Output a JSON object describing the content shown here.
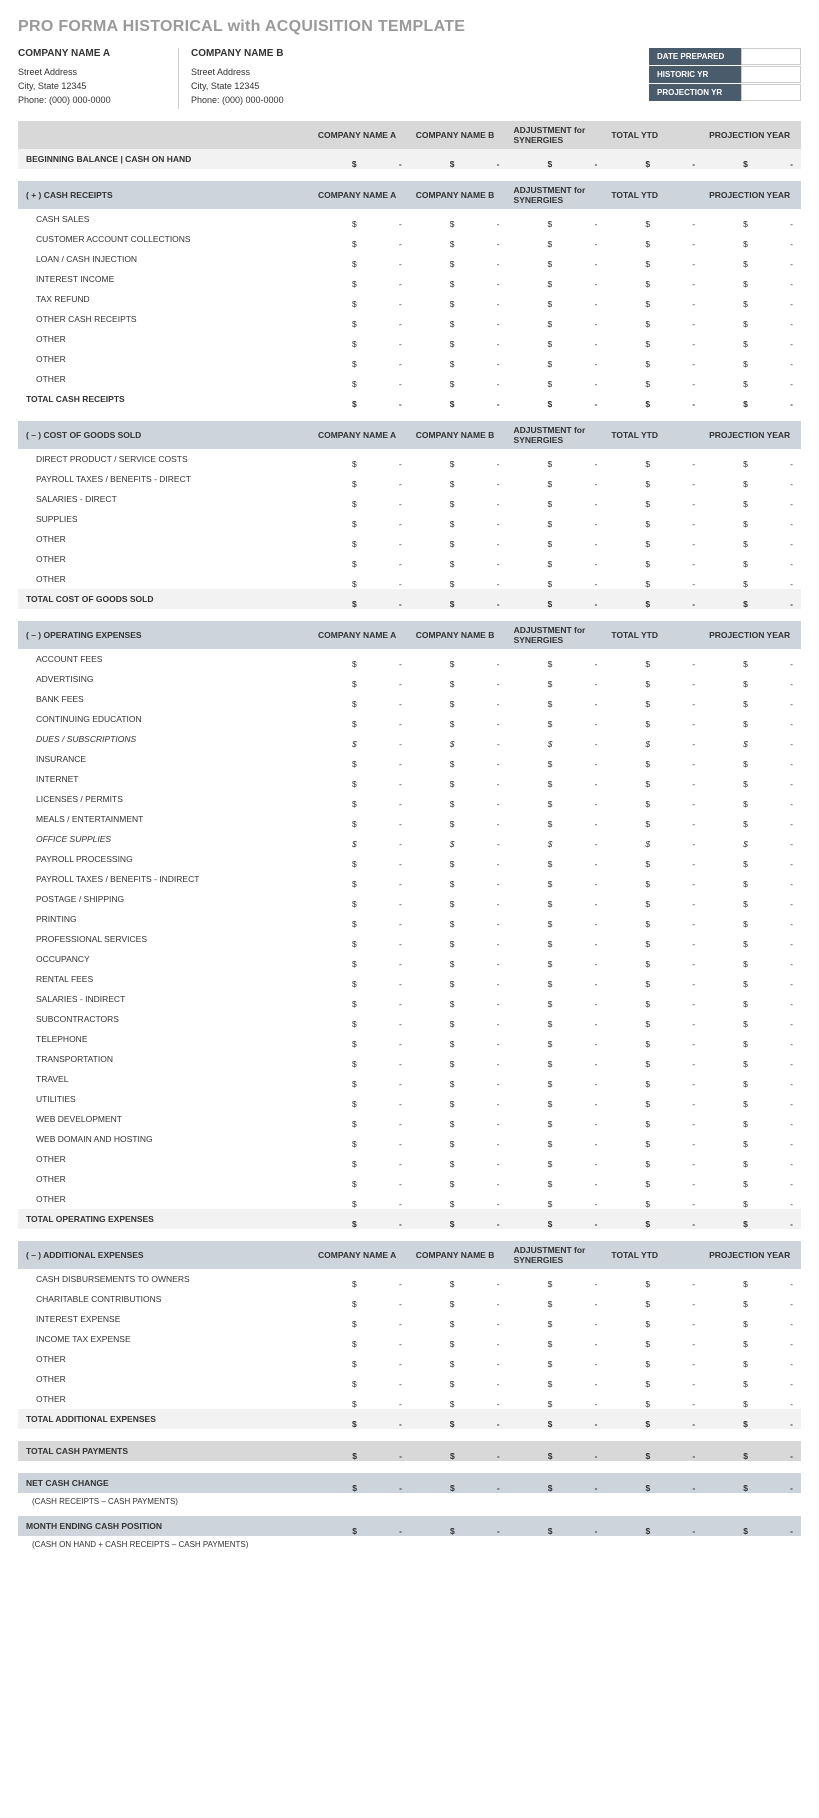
{
  "title": "PRO FORMA HISTORICAL with ACQUISITION TEMPLATE",
  "companyA": {
    "name": "COMPANY NAME A",
    "street": "Street Address",
    "city": "City, State  12345",
    "phone": "Phone: (000) 000-0000"
  },
  "companyB": {
    "name": "COMPANY NAME B",
    "street": "Street Address",
    "city": "City, State  12345",
    "phone": "Phone: (000) 000-0000"
  },
  "meta": {
    "datePrepared": "DATE PREPARED",
    "historicYr": "HISTORIC YR",
    "projectionYr": "PROJECTION YR"
  },
  "columns": [
    "COMPANY NAME A",
    "COMPANY NAME B",
    "ADJUSTMENT for SYNERGIES",
    "TOTAL YTD",
    "PROJECTION YEAR"
  ],
  "currencySymbol": "$",
  "dashSymbol": "-",
  "beginningBalance": {
    "label": "BEGINNING BALANCE  |  CASH ON HAND"
  },
  "sections": [
    {
      "title": "( + )  CASH RECEIPTS",
      "rows": [
        "CASH SALES",
        "CUSTOMER ACCOUNT COLLECTIONS",
        "LOAN / CASH INJECTION",
        "INTEREST INCOME",
        "TAX REFUND",
        "OTHER CASH RECEIPTS",
        "OTHER",
        "OTHER",
        "OTHER"
      ],
      "total": "TOTAL CASH RECEIPTS",
      "totalStyle": "bold"
    },
    {
      "title": "( – )  COST OF GOODS SOLD",
      "rows": [
        "DIRECT PRODUCT / SERVICE COSTS",
        "PAYROLL TAXES / BENEFITS - DIRECT",
        "SALARIES - DIRECT",
        "SUPPLIES",
        "OTHER",
        "OTHER",
        "OTHER"
      ],
      "total": "TOTAL COST OF GOODS SOLD",
      "totalStyle": "light"
    },
    {
      "title": "( – )  OPERATING EXPENSES",
      "rows": [
        "ACCOUNT FEES",
        "ADVERTISING",
        "BANK FEES",
        "CONTINUING EDUCATION",
        "DUES / SUBSCRIPTIONS",
        "INSURANCE",
        "INTERNET",
        "LICENSES / PERMITS",
        "MEALS / ENTERTAINMENT",
        "OFFICE SUPPLIES",
        "PAYROLL PROCESSING",
        "PAYROLL TAXES / BENEFITS - INDIRECT",
        "POSTAGE / SHIPPING",
        "PRINTING",
        "PROFESSIONAL SERVICES",
        "OCCUPANCY",
        "RENTAL FEES",
        "SALARIES - INDIRECT",
        "SUBCONTRACTORS",
        "TELEPHONE",
        "TRANSPORTATION",
        "TRAVEL",
        "UTILITIES",
        "WEB DEVELOPMENT",
        "WEB DOMAIN AND HOSTING",
        "OTHER",
        "OTHER",
        "OTHER"
      ],
      "italicRows": [
        4,
        9
      ],
      "total": "TOTAL OPERATING EXPENSES",
      "totalStyle": "light"
    },
    {
      "title": "( – )  ADDITIONAL EXPENSES",
      "rows": [
        "CASH DISBURSEMENTS TO OWNERS",
        "CHARITABLE CONTRIBUTIONS",
        "INTEREST EXPENSE",
        "INCOME TAX EXPENSE",
        "OTHER",
        "OTHER",
        "OTHER"
      ],
      "total": "TOTAL ADDITIONAL EXPENSES",
      "totalStyle": "light"
    }
  ],
  "summaryRows": [
    {
      "label": "TOTAL CASH PAYMENTS",
      "style": "gray"
    },
    {
      "label": "NET CASH CHANGE",
      "style": "blue",
      "footnote": "(CASH RECEIPTS – CASH PAYMENTS)"
    },
    {
      "label": "MONTH ENDING CASH POSITION",
      "style": "blue",
      "footnote": "(CASH ON HAND + CASH RECEIPTS – CASH PAYMENTS)"
    }
  ],
  "colors": {
    "titleText": "#9a9a9a",
    "headerGray": "#d8d8d8",
    "headerBlue": "#cdd4dc",
    "rowLight": "#f2f2f2",
    "metaBg": "#4a5b6b"
  }
}
